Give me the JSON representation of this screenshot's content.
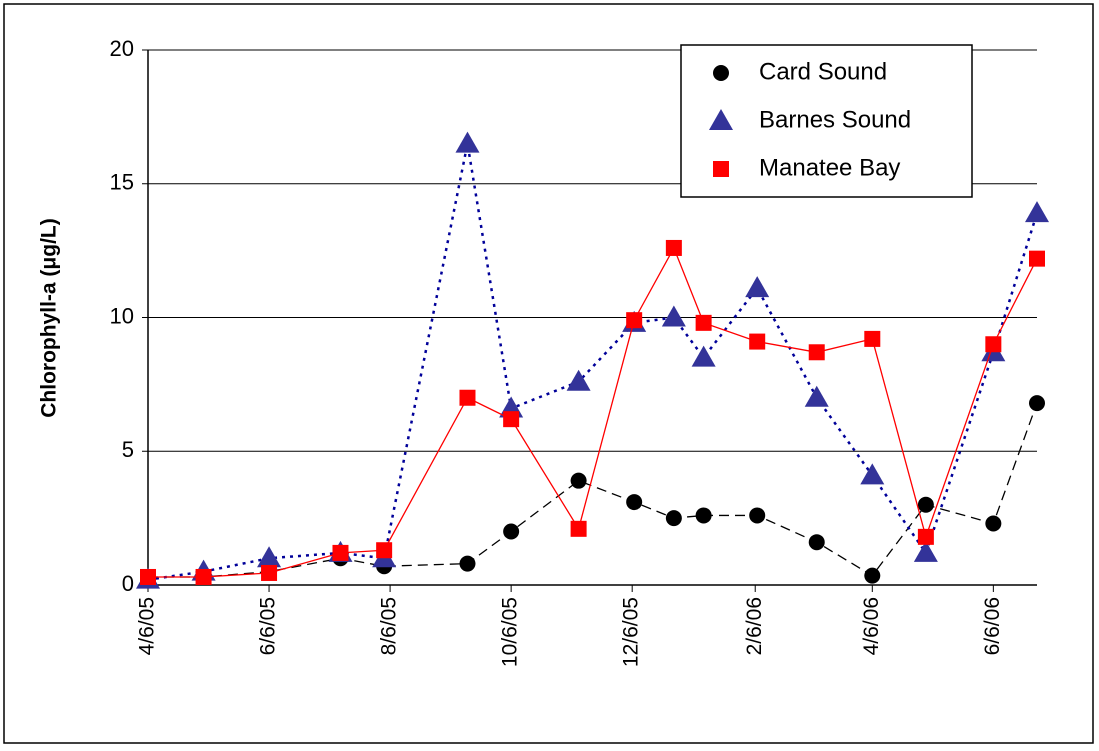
{
  "chart_data": {
    "type": "line",
    "ylabel": "Chlorophyll-a (μg/L)",
    "x": [
      "4/6/05",
      "5/4/05",
      "6/6/05",
      "7/12/05",
      "8/3/05",
      "9/14/05",
      "10/6/05",
      "11/9/05",
      "12/7/05",
      "12/27/05",
      "1/11/06",
      "2/7/06",
      "3/9/06",
      "4/6/06",
      "5/3/06",
      "6/6/06",
      "6/28/06"
    ],
    "series": [
      {
        "name": "Card Sound",
        "color": "#000000",
        "line_style": "dashed",
        "marker": "circle",
        "values": [
          0.3,
          0.3,
          0.5,
          1.0,
          0.7,
          0.8,
          2.0,
          3.9,
          3.1,
          2.5,
          2.6,
          2.6,
          1.6,
          0.35,
          3.0,
          2.3,
          6.8
        ]
      },
      {
        "name": "Barnes Sound",
        "color": "#333399",
        "line_style": "dotted",
        "marker": "triangle",
        "values": [
          0.2,
          0.5,
          1.0,
          1.2,
          1.0,
          16.5,
          6.6,
          7.6,
          9.8,
          10.0,
          8.5,
          11.1,
          7.0,
          4.1,
          1.2,
          8.7,
          13.9
        ]
      },
      {
        "name": "Manatee Bay",
        "color": "#ff0000",
        "line_style": "solid",
        "marker": "square",
        "values": [
          0.3,
          0.3,
          0.45,
          1.2,
          1.3,
          7.0,
          6.2,
          2.1,
          9.9,
          12.6,
          9.8,
          9.1,
          8.7,
          9.2,
          1.8,
          9.0,
          12.2
        ]
      }
    ],
    "xlim": [
      "4/6/05",
      "6/28/06"
    ],
    "xticks": [
      "4/6/05",
      "6/6/05",
      "8/6/05",
      "10/6/05",
      "12/6/05",
      "2/6/06",
      "4/6/06",
      "6/6/06"
    ],
    "ylim": [
      0,
      20
    ],
    "yticks": [
      0,
      5,
      10,
      15,
      20
    ],
    "grid": true,
    "legend": "upper right"
  }
}
